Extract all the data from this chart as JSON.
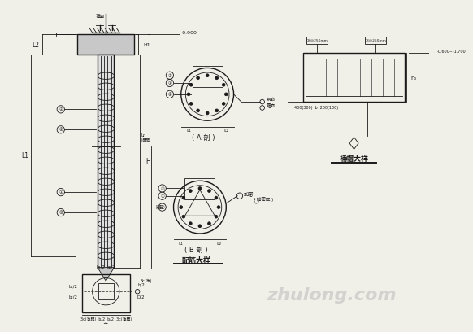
{
  "bg_color": "#f0efe8",
  "line_color": "#1a1a1a",
  "watermark": "zhulong.com",
  "pile_elev": "-0.900",
  "cap_elev": "-0.600~-1.700",
  "bar_size_top": "C8@250mm",
  "dim_bottom": "400(300)  b  200(100)",
  "note_dense": "( 加密区 )",
  "label_A": "( A 剖 )",
  "label_B": "( B 剖 )",
  "label_peijin": "配筋大样",
  "label_zhuangmao": "桶帽大样"
}
